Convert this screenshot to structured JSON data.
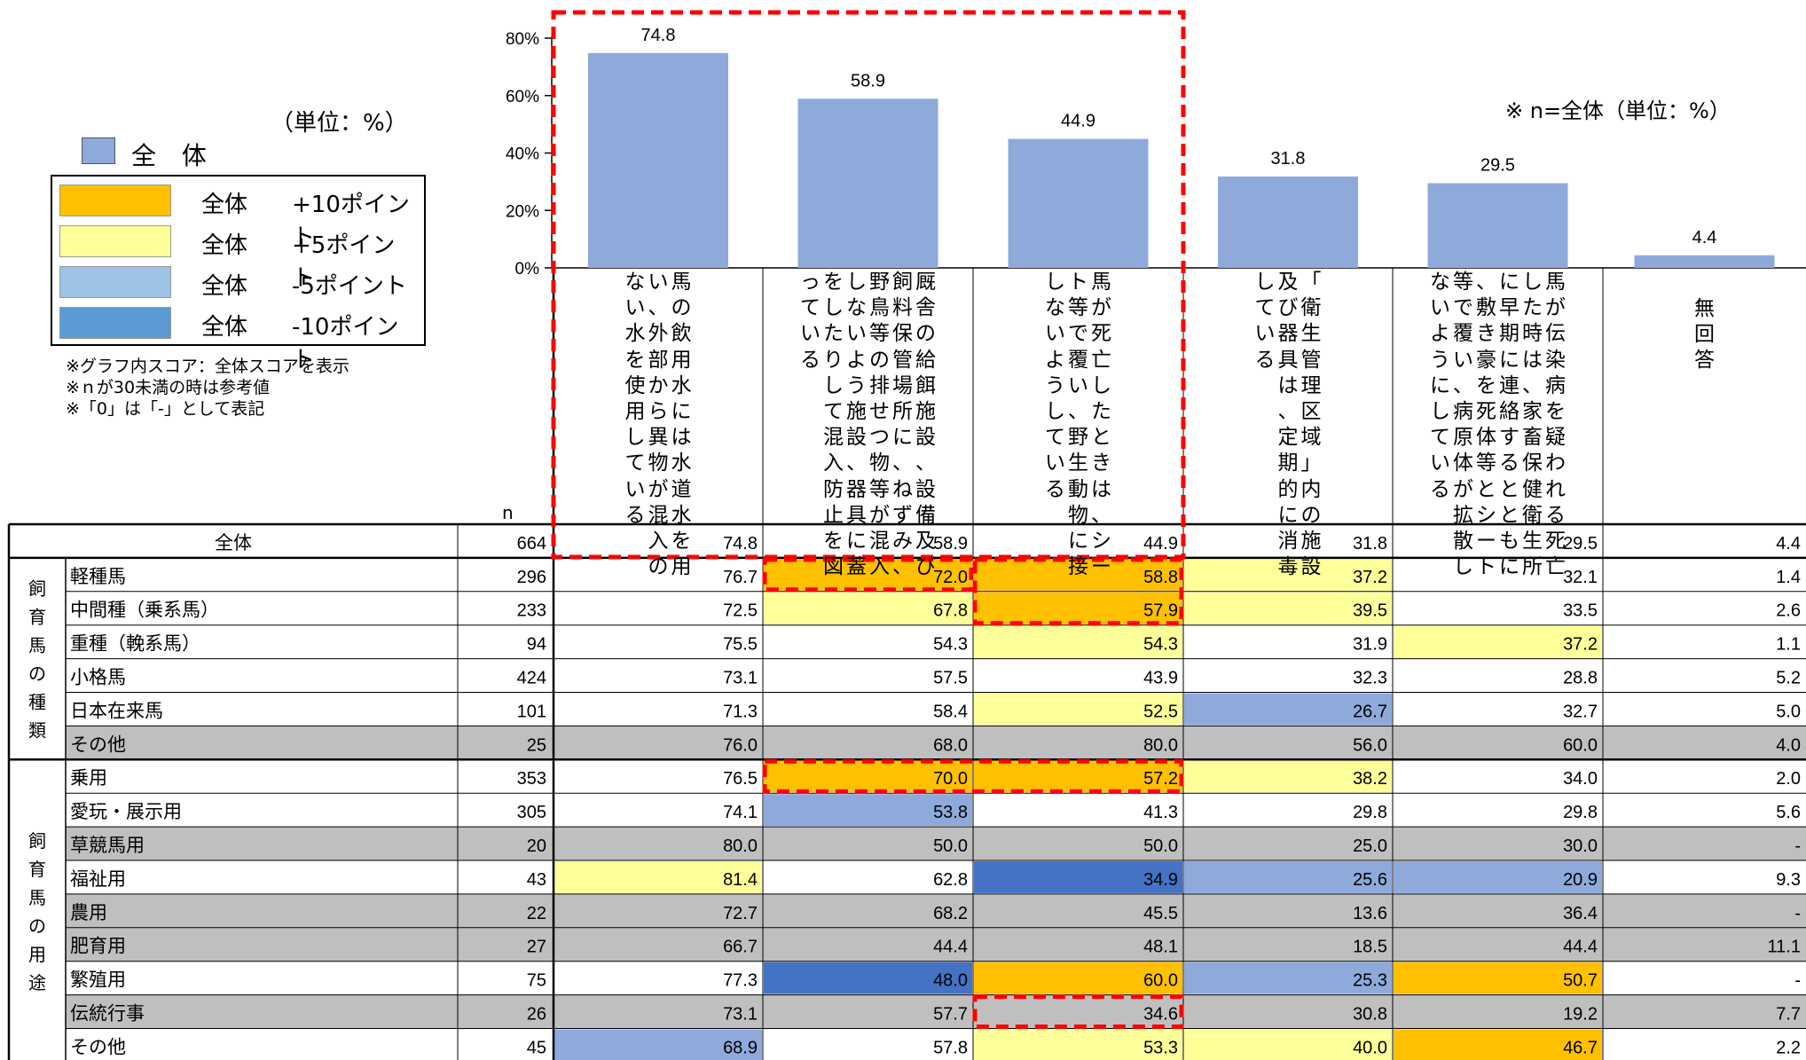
{
  "unit_note": "（単位：%）",
  "unit_note2": "※  n=全体（単位：%）",
  "legend": {
    "all_label": "全 体",
    "all_color": "#8eaadb",
    "items": [
      {
        "label": "全体",
        "delta": "+10ポイント",
        "color": "#ffc000"
      },
      {
        "label": "全体",
        "delta": "+5ポイント",
        "color": "#ffff99"
      },
      {
        "label": "全体",
        "delta": "-5ポイント",
        "color": "#9dc3e6"
      },
      {
        "label": "全体",
        "delta": "-10ポイント",
        "color": "#5b9bd5"
      }
    ]
  },
  "notes": [
    "※グラフ内スコア：全体スコアを表示",
    "※ｎが30未満の時は参考値",
    "※「0」は「-」として表記"
  ],
  "n_header": "n",
  "chart_data": {
    "type": "bar",
    "categories": [
      "馬の飲用水には水道水を用い、外部から異物が混入のない水を使用している",
      "厩舎の給餌施設、設備及び飼料保管場所に、ねずみ、野鳥等の排せつ物等が混入しないよう施設、器具に蓋をしたりして混入防止を図っている",
      "馬が死亡したときは、シート等で覆い、野生動物に接しないようしている",
      "「衛生管理区域」内の施設及び器具は、定期的に消毒している",
      "馬が伝染病を疑われる死亡した時は、家畜保健衛生所に早期に連絡するとともに、敷き豪を死体等とシート等で覆い、病原体が拡散しないようにしている",
      "無回答"
    ],
    "values": [
      74.8,
      58.9,
      44.9,
      31.8,
      29.5,
      4.4
    ],
    "value_labels": [
      "74.8",
      "58.9",
      "44.9",
      "31.8",
      "29.5",
      "4.4"
    ],
    "ylim": [
      0,
      80
    ],
    "yticks": [
      "0%",
      "20%",
      "40%",
      "60%",
      "80%"
    ],
    "bar_color": "#8eaadb",
    "table": {
      "total": {
        "label": "全体",
        "n": "664",
        "values": [
          "74.8",
          "58.9",
          "44.9",
          "31.8",
          "29.5",
          "4.4"
        ]
      },
      "groups": [
        {
          "label": "飼育馬の種類",
          "rows": [
            {
              "label": "軽種馬",
              "n": "296",
              "values": [
                "76.7",
                "72.0",
                "58.8",
                "37.2",
                "32.1",
                "1.4"
              ],
              "shade": false,
              "hl": [
                "",
                "p10",
                "p10",
                "p5",
                "",
                ""
              ]
            },
            {
              "label": "中間種（乗系馬）",
              "n": "233",
              "values": [
                "72.5",
                "67.8",
                "57.9",
                "39.5",
                "33.5",
                "2.6"
              ],
              "shade": false,
              "hl": [
                "",
                "p5",
                "p10",
                "p5",
                "",
                ""
              ]
            },
            {
              "label": "重種（輓系馬）",
              "n": "94",
              "values": [
                "75.5",
                "54.3",
                "54.3",
                "31.9",
                "37.2",
                "1.1"
              ],
              "shade": false,
              "hl": [
                "",
                "",
                "p5",
                "",
                "p5",
                ""
              ]
            },
            {
              "label": "小格馬",
              "n": "424",
              "values": [
                "73.1",
                "57.5",
                "43.9",
                "32.3",
                "28.8",
                "5.2"
              ],
              "shade": false,
              "hl": [
                "",
                "",
                "",
                "",
                "",
                ""
              ]
            },
            {
              "label": "日本在来馬",
              "n": "101",
              "values": [
                "71.3",
                "58.4",
                "52.5",
                "26.7",
                "32.7",
                "5.0"
              ],
              "shade": false,
              "hl": [
                "",
                "",
                "p5",
                "m5",
                "",
                ""
              ]
            },
            {
              "label": "その他",
              "n": "25",
              "values": [
                "76.0",
                "68.0",
                "80.0",
                "56.0",
                "60.0",
                "4.0"
              ],
              "shade": true,
              "hl": [
                "",
                "",
                "",
                "",
                "",
                ""
              ]
            }
          ]
        },
        {
          "label": "飼育馬の用途",
          "rows": [
            {
              "label": "乗用",
              "n": "353",
              "values": [
                "76.5",
                "70.0",
                "57.2",
                "38.2",
                "34.0",
                "2.0"
              ],
              "shade": false,
              "hl": [
                "",
                "p10",
                "p10",
                "p5",
                "",
                ""
              ]
            },
            {
              "label": "愛玩・展示用",
              "n": "305",
              "values": [
                "74.1",
                "53.8",
                "41.3",
                "29.8",
                "29.8",
                "5.6"
              ],
              "shade": false,
              "hl": [
                "",
                "m5",
                "",
                "",
                "",
                ""
              ]
            },
            {
              "label": "草競馬用",
              "n": "20",
              "values": [
                "80.0",
                "50.0",
                "50.0",
                "25.0",
                "30.0",
                "-"
              ],
              "shade": true,
              "hl": [
                "",
                "",
                "",
                "",
                "",
                ""
              ]
            },
            {
              "label": "福祉用",
              "n": "43",
              "values": [
                "81.4",
                "62.8",
                "34.9",
                "25.6",
                "20.9",
                "9.3"
              ],
              "shade": false,
              "hl": [
                "p5",
                "",
                "m10",
                "m5",
                "m5",
                ""
              ]
            },
            {
              "label": "農用",
              "n": "22",
              "values": [
                "72.7",
                "68.2",
                "45.5",
                "13.6",
                "36.4",
                "-"
              ],
              "shade": true,
              "hl": [
                "",
                "",
                "",
                "",
                "",
                ""
              ]
            },
            {
              "label": "肥育用",
              "n": "27",
              "values": [
                "66.7",
                "44.4",
                "48.1",
                "18.5",
                "44.4",
                "11.1"
              ],
              "shade": true,
              "hl": [
                "",
                "",
                "",
                "",
                "",
                ""
              ]
            },
            {
              "label": "繁殖用",
              "n": "75",
              "values": [
                "77.3",
                "48.0",
                "60.0",
                "25.3",
                "50.7",
                "-"
              ],
              "shade": false,
              "hl": [
                "",
                "m10",
                "p10",
                "m5",
                "p10",
                ""
              ]
            },
            {
              "label": "伝統行事",
              "n": "26",
              "values": [
                "73.1",
                "57.7",
                "34.6",
                "30.8",
                "19.2",
                "7.7"
              ],
              "shade": true,
              "hl": [
                "",
                "",
                "",
                "",
                "",
                ""
              ]
            },
            {
              "label": "その他",
              "n": "45",
              "values": [
                "68.9",
                "57.8",
                "53.3",
                "40.0",
                "46.7",
                "2.2"
              ],
              "shade": false,
              "hl": [
                "m5",
                "",
                "p5",
                "p5",
                "p10",
                ""
              ]
            }
          ]
        }
      ]
    }
  },
  "colors": {
    "p10": "#ffc000",
    "p5": "#ffff99",
    "m5": "#8eaadb",
    "m10": "#4472c4",
    "shade": "#bfbfbf",
    "dash": "#ff0000"
  }
}
